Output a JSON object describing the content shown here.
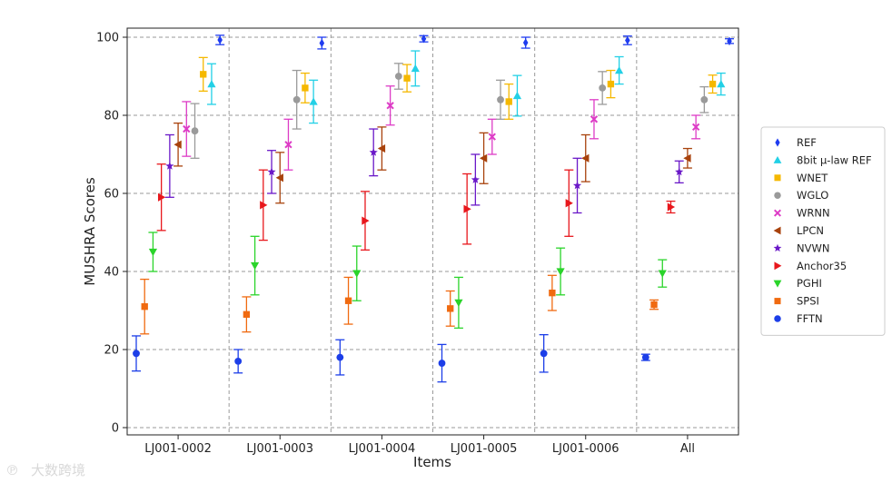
{
  "chart_data": {
    "type": "scatter",
    "subtype": "errorbar",
    "title": "",
    "xlabel": "Items",
    "ylabel": "MUSHRA Scores",
    "ylim": [
      -2,
      102
    ],
    "yticks": [
      0,
      20,
      40,
      60,
      80,
      100
    ],
    "grid": true,
    "legend_position": "right",
    "categories": [
      "LJ001-0002",
      "LJ001-0003",
      "LJ001-0004",
      "LJ001-0005",
      "LJ001-0006",
      "All"
    ],
    "series": [
      {
        "name": "REF",
        "color": "#1f3cf0",
        "marker": "diamond",
        "values": [
          99.3,
          98.5,
          99.6,
          98.6,
          99.2,
          99.0
        ],
        "errors": [
          1.2,
          1.5,
          0.8,
          1.4,
          1.1,
          0.6
        ]
      },
      {
        "name": "8bit μ-law REF",
        "color": "#22d0e6",
        "marker": "triangle-up",
        "values": [
          88.0,
          83.5,
          92.0,
          85.0,
          91.5,
          88.0
        ],
        "errors": [
          5.2,
          5.5,
          4.5,
          5.2,
          3.5,
          2.8
        ]
      },
      {
        "name": "WNET",
        "color": "#f5b800",
        "marker": "square",
        "values": [
          90.5,
          87.0,
          89.5,
          83.5,
          88.0,
          88.0
        ],
        "errors": [
          4.3,
          3.8,
          3.5,
          4.5,
          3.5,
          2.3
        ]
      },
      {
        "name": "WGLO",
        "color": "#9a9a9a",
        "marker": "circle",
        "values": [
          76.0,
          84.0,
          90.0,
          84.0,
          87.0,
          84.0
        ],
        "errors": [
          7.0,
          7.5,
          3.3,
          5.0,
          4.2,
          3.3
        ]
      },
      {
        "name": "WRNN",
        "color": "#dd3cc6",
        "marker": "x",
        "values": [
          76.5,
          72.5,
          82.5,
          74.5,
          79.0,
          77.0
        ],
        "errors": [
          7.0,
          6.5,
          5.0,
          4.5,
          5.0,
          3.0
        ]
      },
      {
        "name": "LPCN",
        "color": "#a8420c",
        "marker": "triangle-left",
        "values": [
          72.5,
          64.0,
          71.5,
          69.0,
          69.0,
          69.0
        ],
        "errors": [
          5.5,
          6.5,
          5.5,
          6.5,
          6.0,
          2.5
        ]
      },
      {
        "name": "NVWN",
        "color": "#6a18c8",
        "marker": "star",
        "values": [
          67.0,
          65.5,
          70.5,
          63.5,
          62.0,
          65.5
        ],
        "errors": [
          8.0,
          5.5,
          6.0,
          6.5,
          7.0,
          2.8
        ]
      },
      {
        "name": "Anchor35",
        "color": "#e8171c",
        "marker": "triangle-right",
        "values": [
          59.0,
          57.0,
          53.0,
          56.0,
          57.5,
          56.5
        ],
        "errors": [
          8.5,
          9.0,
          7.5,
          9.0,
          8.5,
          1.5
        ]
      },
      {
        "name": "PGHI",
        "color": "#2ad42a",
        "marker": "triangle-down",
        "values": [
          45.0,
          41.5,
          39.5,
          32.0,
          40.0,
          39.5
        ],
        "errors": [
          5.0,
          7.5,
          7.0,
          6.5,
          6.0,
          3.5
        ]
      },
      {
        "name": "SPSI",
        "color": "#f06a10",
        "marker": "square",
        "values": [
          31.0,
          29.0,
          32.5,
          30.5,
          34.5,
          31.5
        ],
        "errors": [
          7.0,
          4.5,
          6.0,
          4.5,
          4.5,
          1.2
        ]
      },
      {
        "name": "FFTN",
        "color": "#1c3ee8",
        "marker": "circle",
        "values": [
          19.0,
          17.0,
          18.0,
          16.5,
          19.0,
          18.0
        ],
        "errors": [
          4.5,
          3.0,
          4.5,
          4.8,
          4.8,
          0.8
        ]
      }
    ]
  },
  "watermark": {
    "glyph": "℗",
    "text": "大数跨境"
  }
}
